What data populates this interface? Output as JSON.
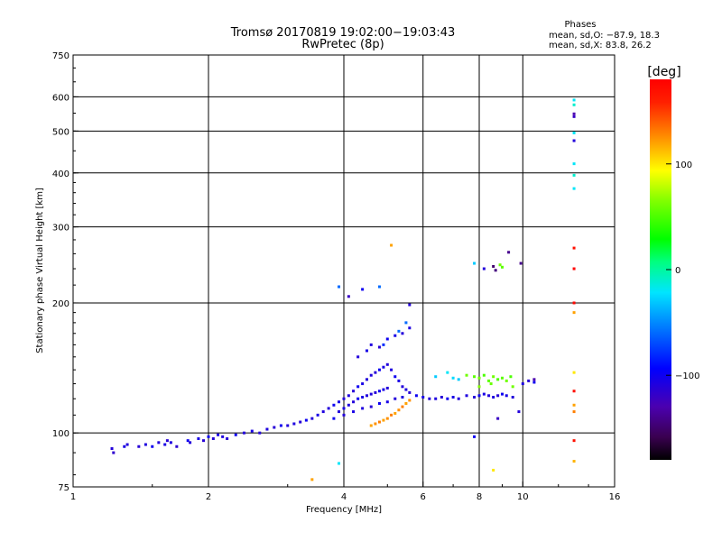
{
  "chart_data": {
    "type": "scatter",
    "title": "Tromsø 20170819 19:02:00−19:03:43",
    "subtitle": "RwPretec (8p)",
    "xlabel": "Frequency [MHz]",
    "ylabel": "Stationary phase Virtual Height [km]",
    "x_scale": "log2",
    "y_scale": "log",
    "xlim": [
      1,
      16
    ],
    "ylim": [
      75,
      750
    ],
    "grid": true,
    "x_ticks": [
      {
        "value": 1,
        "label": "1"
      },
      {
        "value": 2,
        "label": "2"
      },
      {
        "value": 4,
        "label": "4"
      },
      {
        "value": 6,
        "label": "6"
      },
      {
        "value": 8,
        "label": "8"
      },
      {
        "value": 10,
        "label": "10"
      },
      {
        "value": 16,
        "label": "16"
      }
    ],
    "y_ticks": [
      {
        "value": 75,
        "label": "75"
      },
      {
        "value": 100,
        "label": "100"
      },
      {
        "value": 200,
        "label": "200"
      },
      {
        "value": 300,
        "label": "300"
      },
      {
        "value": 400,
        "label": "400"
      },
      {
        "value": 500,
        "label": "500"
      },
      {
        "value": 600,
        "label": "600"
      },
      {
        "value": 750,
        "label": "750"
      }
    ],
    "x_gridlines": [
      2,
      4,
      6,
      8,
      10
    ],
    "y_gridlines": [
      100,
      200,
      300,
      400,
      500,
      600
    ],
    "stats": {
      "title": "Phases",
      "line1": "mean, sd,O: −87.9, 18.3",
      "line2": "mean, sd,X:  83.8, 26.2"
    },
    "colorbar": {
      "label": "[deg]",
      "range": [
        -180,
        180
      ],
      "ticks": [
        {
          "value": 100,
          "label": "100"
        },
        {
          "value": 0,
          "label": "0"
        },
        {
          "value": -100,
          "label": "−100"
        }
      ]
    },
    "points": [
      [
        1.22,
        92,
        -110
      ],
      [
        1.23,
        90,
        -115
      ],
      [
        1.3,
        93,
        -105
      ],
      [
        1.32,
        94,
        -110
      ],
      [
        1.4,
        93,
        -112
      ],
      [
        1.45,
        94,
        -108
      ],
      [
        1.5,
        93,
        -100
      ],
      [
        1.55,
        95,
        -110
      ],
      [
        1.6,
        94,
        -105
      ],
      [
        1.62,
        96,
        -112
      ],
      [
        1.65,
        95,
        -108
      ],
      [
        1.7,
        93,
        -115
      ],
      [
        1.8,
        96,
        -100
      ],
      [
        1.82,
        95,
        -110
      ],
      [
        1.9,
        97,
        -105
      ],
      [
        1.95,
        96,
        -112
      ],
      [
        2.0,
        98,
        -100
      ],
      [
        2.05,
        97,
        -110
      ],
      [
        2.1,
        99,
        -105
      ],
      [
        2.15,
        98,
        -108
      ],
      [
        2.2,
        97,
        -112
      ],
      [
        2.3,
        99,
        -100
      ],
      [
        2.4,
        100,
        -110
      ],
      [
        2.5,
        101,
        -105
      ],
      [
        2.6,
        100,
        -110
      ],
      [
        2.7,
        102,
        -108
      ],
      [
        2.8,
        103,
        -112
      ],
      [
        2.9,
        104,
        -100
      ],
      [
        3.0,
        104,
        -110
      ],
      [
        3.1,
        105,
        -108
      ],
      [
        3.2,
        106,
        -112
      ],
      [
        3.3,
        107,
        -100
      ],
      [
        3.4,
        108,
        -110
      ],
      [
        3.5,
        110,
        -105
      ],
      [
        3.6,
        112,
        -108
      ],
      [
        3.7,
        114,
        -110
      ],
      [
        3.8,
        116,
        -100
      ],
      [
        3.9,
        118,
        -105
      ],
      [
        4.0,
        120,
        -110
      ],
      [
        4.1,
        122,
        -108
      ],
      [
        4.2,
        125,
        -112
      ],
      [
        4.3,
        128,
        -100
      ],
      [
        4.4,
        130,
        -105
      ],
      [
        4.5,
        133,
        -110
      ],
      [
        4.6,
        136,
        -108
      ],
      [
        4.7,
        138,
        -112
      ],
      [
        4.8,
        140,
        -100
      ],
      [
        4.9,
        142,
        -105
      ],
      [
        5.0,
        144,
        -110
      ],
      [
        5.1,
        140,
        -108
      ],
      [
        5.2,
        135,
        -100
      ],
      [
        5.3,
        132,
        -105
      ],
      [
        5.4,
        128,
        -110
      ],
      [
        5.5,
        126,
        -108
      ],
      [
        5.6,
        124,
        -112
      ],
      [
        5.8,
        122,
        -100
      ],
      [
        6.0,
        121,
        -105
      ],
      [
        6.2,
        120,
        -110
      ],
      [
        6.4,
        120,
        -108
      ],
      [
        6.6,
        121,
        -112
      ],
      [
        6.8,
        120,
        -100
      ],
      [
        7.0,
        121,
        -105
      ],
      [
        7.2,
        120,
        -110
      ],
      [
        7.5,
        122,
        -108
      ],
      [
        7.8,
        121,
        -112
      ],
      [
        8.0,
        122,
        -100
      ],
      [
        8.2,
        123,
        -105
      ],
      [
        8.4,
        122,
        -110
      ],
      [
        8.6,
        121,
        -108
      ],
      [
        8.8,
        122,
        -112
      ],
      [
        9.0,
        123,
        -100
      ],
      [
        9.2,
        122,
        -105
      ],
      [
        9.5,
        121,
        -110
      ],
      [
        10.0,
        130,
        -108
      ],
      [
        10.3,
        132,
        -112
      ],
      [
        10.6,
        131,
        -100
      ],
      [
        3.9,
        112,
        -110
      ],
      [
        4.0,
        114,
        -105
      ],
      [
        4.1,
        116,
        -108
      ],
      [
        4.2,
        118,
        -110
      ],
      [
        4.3,
        120,
        -100
      ],
      [
        4.4,
        121,
        -105
      ],
      [
        4.5,
        122,
        -110
      ],
      [
        4.6,
        123,
        -108
      ],
      [
        4.7,
        124,
        -112
      ],
      [
        4.8,
        125,
        -100
      ],
      [
        4.9,
        126,
        -105
      ],
      [
        5.0,
        127,
        -110
      ],
      [
        3.8,
        108,
        -100
      ],
      [
        4.0,
        110,
        -110
      ],
      [
        4.2,
        112,
        -105
      ],
      [
        4.4,
        114,
        -108
      ],
      [
        4.6,
        115,
        -112
      ],
      [
        4.8,
        117,
        -100
      ],
      [
        5.0,
        118,
        -105
      ],
      [
        5.2,
        120,
        -110
      ],
      [
        5.4,
        121,
        -108
      ],
      [
        4.3,
        150,
        -110
      ],
      [
        4.5,
        155,
        -105
      ],
      [
        4.6,
        160,
        -108
      ],
      [
        4.8,
        158,
        -112
      ],
      [
        5.0,
        165,
        -100
      ],
      [
        5.2,
        168,
        -105
      ],
      [
        5.4,
        170,
        -110
      ],
      [
        5.6,
        175,
        -108
      ],
      [
        4.9,
        160,
        -80
      ],
      [
        5.3,
        172,
        -60
      ],
      [
        5.5,
        180,
        -60
      ],
      [
        4.6,
        104,
        120
      ],
      [
        4.7,
        105,
        125
      ],
      [
        4.8,
        106,
        130
      ],
      [
        4.9,
        107,
        120
      ],
      [
        5.0,
        108,
        125
      ],
      [
        5.1,
        110,
        130
      ],
      [
        5.2,
        111,
        120
      ],
      [
        5.3,
        113,
        125
      ],
      [
        5.4,
        115,
        130
      ],
      [
        5.5,
        117,
        120
      ],
      [
        5.6,
        119,
        125
      ],
      [
        6.4,
        135,
        -30
      ],
      [
        6.8,
        138,
        -20
      ],
      [
        7.0,
        134,
        -25
      ],
      [
        7.2,
        133,
        -30
      ],
      [
        7.5,
        136,
        60
      ],
      [
        7.8,
        135,
        55
      ],
      [
        8.0,
        134,
        60
      ],
      [
        8.2,
        136,
        50
      ],
      [
        8.4,
        132,
        55
      ],
      [
        8.6,
        135,
        60
      ],
      [
        8.8,
        133,
        50
      ],
      [
        9.0,
        134,
        55
      ],
      [
        9.2,
        132,
        60
      ],
      [
        9.4,
        135,
        50
      ],
      [
        9.5,
        128,
        60
      ],
      [
        8.0,
        128,
        65
      ],
      [
        8.5,
        130,
        58
      ],
      [
        4.1,
        207,
        -120
      ],
      [
        4.4,
        215,
        -100
      ],
      [
        3.9,
        218,
        -60
      ],
      [
        4.8,
        218,
        -60
      ],
      [
        5.6,
        198,
        -110
      ],
      [
        5.1,
        272,
        120
      ],
      [
        7.8,
        247,
        -30
      ],
      [
        8.2,
        240,
        -110
      ],
      [
        8.6,
        243,
        -150
      ],
      [
        8.7,
        238,
        -145
      ],
      [
        8.9,
        245,
        60
      ],
      [
        9.0,
        242,
        55
      ],
      [
        9.3,
        262,
        -140
      ],
      [
        9.9,
        247,
        -140
      ],
      [
        10.6,
        133,
        -130
      ],
      [
        9.8,
        112,
        -110
      ],
      [
        8.8,
        108,
        -120
      ],
      [
        3.4,
        78,
        120
      ],
      [
        3.9,
        85,
        -20
      ],
      [
        7.8,
        98,
        -100
      ],
      [
        8.6,
        82,
        100
      ],
      [
        13.0,
        590,
        -20
      ],
      [
        13.0,
        575,
        -10
      ],
      [
        13.0,
        548,
        -130
      ],
      [
        13.0,
        540,
        -120
      ],
      [
        13.0,
        495,
        -20
      ],
      [
        13.0,
        475,
        -110
      ],
      [
        13.0,
        420,
        -20
      ],
      [
        13.0,
        395,
        -10
      ],
      [
        13.0,
        368,
        -20
      ],
      [
        13.0,
        268,
        170
      ],
      [
        13.0,
        240,
        180
      ],
      [
        13.0,
        200,
        175
      ],
      [
        13.0,
        190,
        120
      ],
      [
        13.0,
        138,
        100
      ],
      [
        13.0,
        125,
        170
      ],
      [
        13.0,
        116,
        120
      ],
      [
        13.0,
        112,
        130
      ],
      [
        13.0,
        96,
        170
      ],
      [
        13.0,
        86,
        115
      ]
    ]
  }
}
